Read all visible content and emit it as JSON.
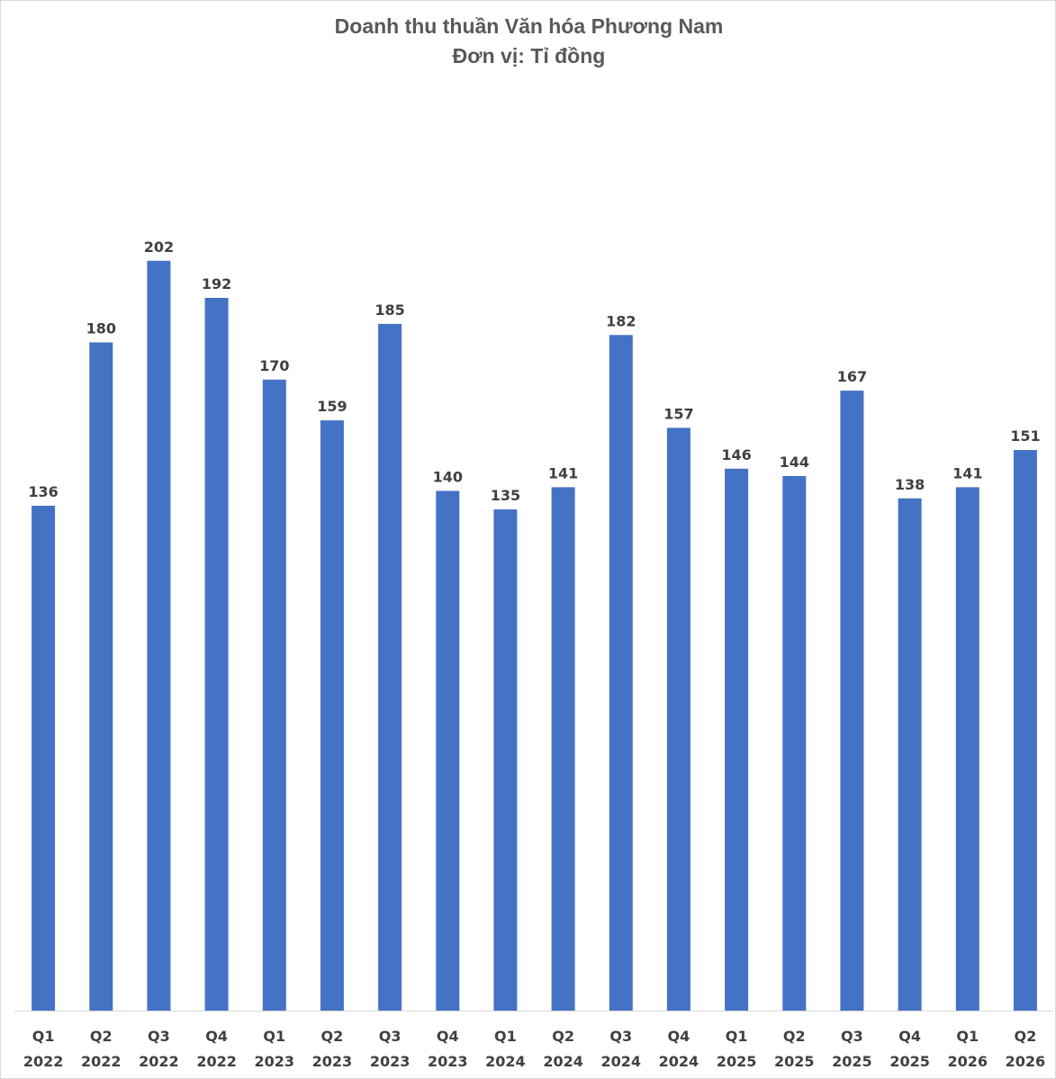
{
  "chart_data": {
    "type": "bar",
    "title": "Doanh thu thuần Văn hóa Phương Nam",
    "subtitle": "Đơn vị: Tỉ đồng",
    "xlabel": "",
    "ylabel": "",
    "categories": [
      [
        "Q1",
        "2022"
      ],
      [
        "Q2",
        "2022"
      ],
      [
        "Q3",
        "2022"
      ],
      [
        "Q4",
        "2022"
      ],
      [
        "Q1",
        "2023"
      ],
      [
        "Q2",
        "2023"
      ],
      [
        "Q3",
        "2023"
      ],
      [
        "Q4",
        "2023"
      ],
      [
        "Q1",
        "2024"
      ],
      [
        "Q2",
        "2024"
      ],
      [
        "Q3",
        "2024"
      ],
      [
        "Q4",
        "2024"
      ],
      [
        "Q1",
        "2025"
      ],
      [
        "Q2",
        "2025"
      ],
      [
        "Q3",
        "2025"
      ],
      [
        "Q4",
        "2025"
      ],
      [
        "Q1",
        "2026"
      ],
      [
        "Q2",
        "2026"
      ]
    ],
    "values": [
      136,
      180,
      202,
      192,
      170,
      159,
      185,
      140,
      135,
      141,
      182,
      157,
      146,
      144,
      167,
      138,
      141,
      151
    ],
    "ylim": [
      0,
      202
    ],
    "grid": false,
    "legend": "none",
    "bar_color": "#4472c4",
    "axis_color": "#d9d9d9",
    "label_color": "#404040"
  }
}
